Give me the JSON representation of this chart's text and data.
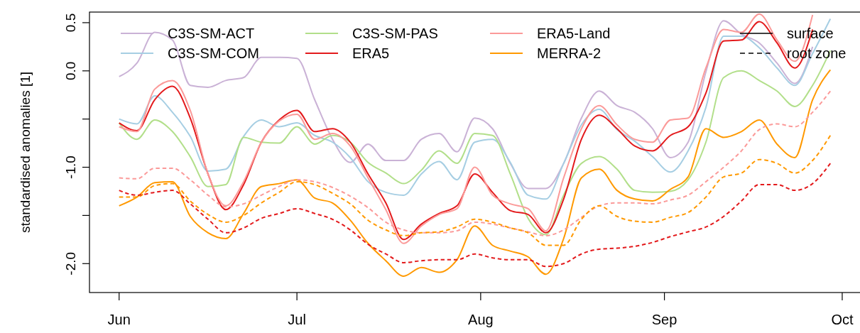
{
  "chart_data": {
    "type": "line",
    "ylabel": "standardised anomalies [1]",
    "x": [
      "--06-01",
      "--06-04",
      "--06-07",
      "--06-10",
      "--06-13",
      "--06-16",
      "--06-19",
      "--06-22",
      "--06-25",
      "--06-28",
      "--07-01",
      "--07-04",
      "--07-07",
      "--07-10",
      "--07-13",
      "--07-16",
      "--07-19",
      "--07-22",
      "--07-25",
      "--07-28",
      "--07-31",
      "--08-03",
      "--08-06",
      "--08-09",
      "--08-12",
      "--08-15",
      "--08-18",
      "--08-21",
      "--08-24",
      "--08-27",
      "--08-30",
      "--09-02",
      "--09-05",
      "--09-08",
      "--09-11",
      "--09-14",
      "--09-17",
      "--09-20",
      "--09-23",
      "--09-26",
      "--09-29"
    ],
    "xlim": [
      "--05-27",
      "--10-04"
    ],
    "xticks": [
      {
        "value": "--06-01",
        "label": "Jun"
      },
      {
        "value": "--07-01",
        "label": "Jul"
      },
      {
        "value": "--08-01",
        "label": "Aug"
      },
      {
        "value": "--09-01",
        "label": "Sep"
      },
      {
        "value": "--10-01",
        "label": "Oct"
      }
    ],
    "ylim": [
      -2.3,
      0.61
    ],
    "yticks": [
      {
        "value": -2,
        "label": "-2.0"
      },
      {
        "value": -1.5,
        "label": null
      },
      {
        "value": -1,
        "label": "-1.0"
      },
      {
        "value": -0.5,
        "label": null
      },
      {
        "value": 0,
        "label": "0.0"
      },
      {
        "value": 0.5,
        "label": "0.5"
      }
    ],
    "grid": false,
    "legend": "top",
    "annotations": [
      "surface",
      "root zone"
    ],
    "series": [
      {
        "name": "C3S-SM-ACT",
        "color": "#cab2d6",
        "line_style": "solid",
        "values": [
          -0.06,
          0.08,
          0.4,
          0.32,
          -0.15,
          -0.17,
          -0.1,
          -0.07,
          0.14,
          0.14,
          0.13,
          -0.3,
          -0.71,
          -0.95,
          -0.76,
          -0.93,
          -0.93,
          -0.71,
          -0.65,
          -0.84,
          -0.49,
          -0.6,
          -0.96,
          -1.22,
          -1.22,
          -0.96,
          -0.49,
          -0.21,
          -0.36,
          -0.43,
          -0.6,
          -0.9,
          -0.74,
          -0.01,
          0.52,
          0.38,
          0.29,
          0.08,
          -0.13,
          0.25,
          null
        ]
      },
      {
        "name": "C3S-SM-COM",
        "color": "#a6cee3",
        "line_style": "solid",
        "values": [
          -0.5,
          -0.55,
          -0.26,
          -0.43,
          -0.68,
          -1.04,
          -1.02,
          -0.68,
          -0.51,
          -0.58,
          -0.54,
          -0.67,
          -0.74,
          -0.9,
          -1.15,
          -1.26,
          -1.29,
          -1.07,
          -0.94,
          -1.13,
          -0.74,
          -0.71,
          -0.95,
          -1.29,
          -1.33,
          -0.96,
          -0.56,
          -0.4,
          -0.61,
          -0.73,
          -0.89,
          -1.05,
          -0.83,
          -0.38,
          0.36,
          0.36,
          0.24,
          0.03,
          -0.15,
          0.18,
          0.54
        ]
      },
      {
        "name": "C3S-SM-PAS",
        "color": "#b2df8a",
        "line_style": "solid",
        "values": [
          -0.54,
          -0.71,
          -0.51,
          -0.63,
          -0.89,
          -1.2,
          -1.18,
          -0.69,
          -0.74,
          -0.75,
          -0.58,
          -0.76,
          -0.67,
          -0.74,
          -0.95,
          -1.06,
          -1.17,
          -1.03,
          -0.83,
          -0.96,
          -0.65,
          -0.67,
          -1.07,
          -1.53,
          -1.7,
          -1.29,
          -0.96,
          -0.89,
          -1.02,
          -1.24,
          -1.26,
          -1.25,
          -1.13,
          -0.74,
          -0.07,
          0.0,
          -0.1,
          -0.21,
          -0.37,
          -0.15,
          0.21
        ]
      },
      {
        "name": "ERA5",
        "color": "#e31a1c",
        "line_style": "solid",
        "values": [
          -0.54,
          -0.62,
          -0.3,
          -0.16,
          -0.49,
          -1.07,
          -1.44,
          -1.18,
          -0.74,
          -0.51,
          -0.41,
          -0.63,
          -0.6,
          -0.74,
          -1.07,
          -1.37,
          -1.75,
          -1.59,
          -1.48,
          -1.4,
          -1.07,
          -1.26,
          -1.45,
          -1.49,
          -1.68,
          -1.33,
          -0.71,
          -0.46,
          -0.6,
          -0.78,
          -0.83,
          -0.67,
          -0.58,
          -0.23,
          0.31,
          0.32,
          0.51,
          0.29,
          0.03,
          0.43,
          null
        ]
      },
      {
        "name": "ERA5-Land",
        "color": "#fb9a99",
        "line_style": "solid",
        "values": [
          -0.58,
          -0.63,
          -0.19,
          -0.1,
          -0.41,
          -1.07,
          -1.4,
          -1.15,
          -0.74,
          -0.52,
          -0.45,
          -0.71,
          -0.65,
          -0.78,
          -1.11,
          -1.44,
          -1.79,
          -1.61,
          -1.49,
          -1.43,
          -1.0,
          -1.29,
          -1.38,
          -1.43,
          -1.66,
          -1.11,
          -0.6,
          -0.36,
          -0.56,
          -0.71,
          -0.74,
          -0.51,
          -0.49,
          0.03,
          0.43,
          0.4,
          0.59,
          0.32,
          0.1,
          0.58,
          null
        ]
      },
      {
        "name": "MERRA-2",
        "color": "#ff9900",
        "line_style": "solid",
        "values": [
          -1.4,
          -1.31,
          -1.16,
          -1.15,
          -1.51,
          -1.68,
          -1.74,
          -1.48,
          -1.2,
          -1.17,
          -1.13,
          -1.32,
          -1.37,
          -1.55,
          -1.79,
          -1.97,
          -2.13,
          -2.04,
          -2.09,
          -1.96,
          -1.61,
          -1.81,
          -1.87,
          -1.93,
          -2.11,
          -1.74,
          -1.11,
          -1.02,
          -1.24,
          -1.33,
          -1.35,
          -1.23,
          -1.1,
          -0.6,
          -0.69,
          -0.63,
          -0.51,
          -0.76,
          -0.9,
          -0.3,
          0.01
        ]
      },
      {
        "color": "#fb9a99",
        "line_style": "dashed",
        "values": [
          -1.11,
          -1.12,
          -1.01,
          -1.01,
          -1.13,
          -1.29,
          -1.41,
          -1.38,
          -1.29,
          -1.2,
          -1.13,
          -1.15,
          -1.21,
          -1.3,
          -1.42,
          -1.57,
          -1.65,
          -1.68,
          -1.68,
          -1.66,
          -1.57,
          -1.59,
          -1.63,
          -1.67,
          -1.71,
          -1.65,
          -1.52,
          -1.4,
          -1.37,
          -1.37,
          -1.38,
          -1.34,
          -1.29,
          -1.15,
          -1.0,
          -0.83,
          -0.61,
          -0.55,
          -0.58,
          -0.43,
          -0.21
        ]
      },
      {
        "color": "#ff9900",
        "line_style": "dashed",
        "values": [
          -1.31,
          -1.31,
          -1.19,
          -1.17,
          -1.35,
          -1.49,
          -1.57,
          -1.5,
          -1.37,
          -1.26,
          -1.15,
          -1.18,
          -1.27,
          -1.38,
          -1.55,
          -1.65,
          -1.71,
          -1.68,
          -1.67,
          -1.62,
          -1.54,
          -1.57,
          -1.63,
          -1.68,
          -1.81,
          -1.81,
          -1.54,
          -1.4,
          -1.51,
          -1.56,
          -1.57,
          -1.52,
          -1.47,
          -1.31,
          -1.1,
          -1.06,
          -0.92,
          -0.96,
          -1.06,
          -0.93,
          -0.67
        ]
      },
      {
        "color": "#e31a1c",
        "line_style": "dashed",
        "values": [
          -1.24,
          -1.29,
          -1.26,
          -1.24,
          -1.38,
          -1.54,
          -1.68,
          -1.63,
          -1.53,
          -1.48,
          -1.43,
          -1.48,
          -1.54,
          -1.65,
          -1.8,
          -1.9,
          -1.99,
          -1.97,
          -1.96,
          -1.96,
          -1.9,
          -1.94,
          -1.96,
          -1.96,
          -2.03,
          -2.0,
          -1.9,
          -1.85,
          -1.84,
          -1.82,
          -1.78,
          -1.72,
          -1.67,
          -1.62,
          -1.51,
          -1.35,
          -1.18,
          -1.18,
          -1.24,
          -1.17,
          -0.96
        ]
      }
    ]
  }
}
